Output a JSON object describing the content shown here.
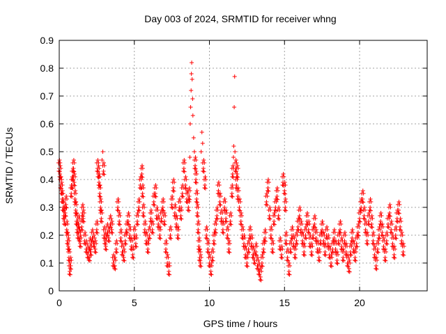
{
  "chart_data": {
    "type": "scatter",
    "title": "Day 003 of 2024, SRMTID for receiver whng",
    "xlabel": "GPS time / hours",
    "ylabel": "SRMTID / TECUs",
    "xlim": [
      0,
      24.5
    ],
    "ylim": [
      0,
      0.9
    ],
    "xticks": [
      0,
      5,
      10,
      15,
      20
    ],
    "xtick_labels": [
      "0",
      "5",
      "10",
      "15",
      "20"
    ],
    "yticks": [
      0,
      0.1,
      0.2,
      0.3,
      0.4,
      0.5,
      0.6,
      0.7,
      0.8,
      0.9
    ],
    "ytick_labels": [
      "0",
      "0.1",
      "0.2",
      "0.3",
      "0.4",
      "0.5",
      "0.6",
      "0.7",
      "0.8",
      "0.9"
    ],
    "grid": true,
    "marker": "+",
    "color": "#ff0000",
    "series": [
      {
        "name": "SRMTID",
        "points": [
          [
            0.0,
            0.44
          ],
          [
            0.05,
            0.42
          ],
          [
            0.1,
            0.38
          ],
          [
            0.15,
            0.36
          ],
          [
            0.2,
            0.33
          ],
          [
            0.25,
            0.3
          ],
          [
            0.3,
            0.27
          ],
          [
            0.35,
            0.25
          ],
          [
            0.4,
            0.28
          ],
          [
            0.45,
            0.31
          ],
          [
            0.5,
            0.22
          ],
          [
            0.55,
            0.18
          ],
          [
            0.6,
            0.16
          ],
          [
            0.65,
            0.12
          ],
          [
            0.7,
            0.07
          ],
          [
            0.75,
            0.09
          ],
          [
            0.8,
            0.35
          ],
          [
            0.85,
            0.38
          ],
          [
            0.9,
            0.41
          ],
          [
            0.95,
            0.44
          ],
          [
            1.0,
            0.39
          ],
          [
            1.05,
            0.33
          ],
          [
            1.1,
            0.29
          ],
          [
            1.15,
            0.25
          ],
          [
            1.2,
            0.22
          ],
          [
            1.25,
            0.2
          ],
          [
            1.3,
            0.24
          ],
          [
            1.35,
            0.19
          ],
          [
            1.4,
            0.17
          ],
          [
            1.5,
            0.23
          ],
          [
            1.55,
            0.28
          ],
          [
            1.6,
            0.26
          ],
          [
            1.7,
            0.18
          ],
          [
            1.8,
            0.15
          ],
          [
            1.9,
            0.13
          ],
          [
            2.0,
            0.12
          ],
          [
            2.05,
            0.16
          ],
          [
            2.1,
            0.14
          ],
          [
            2.2,
            0.19
          ],
          [
            2.3,
            0.17
          ],
          [
            2.4,
            0.15
          ],
          [
            2.5,
            0.22
          ],
          [
            2.55,
            0.44
          ],
          [
            2.6,
            0.42
          ],
          [
            2.65,
            0.39
          ],
          [
            2.7,
            0.35
          ],
          [
            2.75,
            0.3
          ],
          [
            2.8,
            0.26
          ],
          [
            2.85,
            0.47
          ],
          [
            2.9,
            0.5
          ],
          [
            2.95,
            0.43
          ],
          [
            3.0,
            0.2
          ],
          [
            3.05,
            0.18
          ],
          [
            3.1,
            0.16
          ],
          [
            3.2,
            0.21
          ],
          [
            3.3,
            0.19
          ],
          [
            3.4,
            0.24
          ],
          [
            3.5,
            0.22
          ],
          [
            3.6,
            0.1
          ],
          [
            3.7,
            0.09
          ],
          [
            3.8,
            0.15
          ],
          [
            3.9,
            0.3
          ],
          [
            4.0,
            0.25
          ],
          [
            4.1,
            0.19
          ],
          [
            4.2,
            0.14
          ],
          [
            4.3,
            0.12
          ],
          [
            4.4,
            0.18
          ],
          [
            4.5,
            0.22
          ],
          [
            4.6,
            0.25
          ],
          [
            4.7,
            0.2
          ],
          [
            4.8,
            0.16
          ],
          [
            4.9,
            0.13
          ],
          [
            5.0,
            0.2
          ],
          [
            5.1,
            0.17
          ],
          [
            5.2,
            0.25
          ],
          [
            5.3,
            0.3
          ],
          [
            5.4,
            0.38
          ],
          [
            5.5,
            0.42
          ],
          [
            5.55,
            0.35
          ],
          [
            5.6,
            0.28
          ],
          [
            5.7,
            0.22
          ],
          [
            5.8,
            0.18
          ],
          [
            5.9,
            0.15
          ],
          [
            6.0,
            0.2
          ],
          [
            6.1,
            0.26
          ],
          [
            6.2,
            0.22
          ],
          [
            6.3,
            0.32
          ],
          [
            6.4,
            0.35
          ],
          [
            6.5,
            0.27
          ],
          [
            6.6,
            0.24
          ],
          [
            6.7,
            0.2
          ],
          [
            6.8,
            0.26
          ],
          [
            6.9,
            0.3
          ],
          [
            7.0,
            0.25
          ],
          [
            7.1,
            0.15
          ],
          [
            7.2,
            0.1
          ],
          [
            7.3,
            0.07
          ],
          [
            7.4,
            0.2
          ],
          [
            7.5,
            0.31
          ],
          [
            7.6,
            0.37
          ],
          [
            7.7,
            0.28
          ],
          [
            7.8,
            0.24
          ],
          [
            7.9,
            0.2
          ],
          [
            8.0,
            0.3
          ],
          [
            8.1,
            0.27
          ],
          [
            8.2,
            0.35
          ],
          [
            8.3,
            0.44
          ],
          [
            8.4,
            0.38
          ],
          [
            8.5,
            0.33
          ],
          [
            8.6,
            0.3
          ],
          [
            8.65,
            0.34
          ],
          [
            8.7,
            0.48
          ],
          [
            8.72,
            0.6
          ],
          [
            8.75,
            0.66
          ],
          [
            8.78,
            0.72
          ],
          [
            8.8,
            0.78
          ],
          [
            8.82,
            0.82
          ],
          [
            8.85,
            0.76
          ],
          [
            8.88,
            0.69
          ],
          [
            8.9,
            0.63
          ],
          [
            8.95,
            0.55
          ],
          [
            9.0,
            0.5
          ],
          [
            9.05,
            0.45
          ],
          [
            9.1,
            0.4
          ],
          [
            9.15,
            0.33
          ],
          [
            9.2,
            0.28
          ],
          [
            9.25,
            0.22
          ],
          [
            9.3,
            0.16
          ],
          [
            9.35,
            0.12
          ],
          [
            9.4,
            0.1
          ],
          [
            9.45,
            0.5
          ],
          [
            9.5,
            0.57
          ],
          [
            9.55,
            0.53
          ],
          [
            9.6,
            0.44
          ],
          [
            9.7,
            0.38
          ],
          [
            9.8,
            0.2
          ],
          [
            9.9,
            0.15
          ],
          [
            10.0,
            0.1
          ],
          [
            10.1,
            0.07
          ],
          [
            10.2,
            0.12
          ],
          [
            10.3,
            0.18
          ],
          [
            10.4,
            0.22
          ],
          [
            10.5,
            0.27
          ],
          [
            10.6,
            0.36
          ],
          [
            10.7,
            0.32
          ],
          [
            10.8,
            0.26
          ],
          [
            10.9,
            0.22
          ],
          [
            11.0,
            0.3
          ],
          [
            11.1,
            0.26
          ],
          [
            11.2,
            0.2
          ],
          [
            11.3,
            0.15
          ],
          [
            11.4,
            0.25
          ],
          [
            11.5,
            0.35
          ],
          [
            11.55,
            0.42
          ],
          [
            11.6,
            0.48
          ],
          [
            11.62,
            0.52
          ],
          [
            11.65,
            0.66
          ],
          [
            11.68,
            0.77
          ],
          [
            11.7,
            0.5
          ],
          [
            11.75,
            0.44
          ],
          [
            11.8,
            0.38
          ],
          [
            11.85,
            0.42
          ],
          [
            11.9,
            0.34
          ],
          [
            12.0,
            0.3
          ],
          [
            12.1,
            0.25
          ],
          [
            12.2,
            0.2
          ],
          [
            12.3,
            0.17
          ],
          [
            12.4,
            0.13
          ],
          [
            12.5,
            0.1
          ],
          [
            12.6,
            0.15
          ],
          [
            12.7,
            0.2
          ],
          [
            12.8,
            0.17
          ],
          [
            12.9,
            0.13
          ],
          [
            13.0,
            0.11
          ],
          [
            13.1,
            0.14
          ],
          [
            13.2,
            0.09
          ],
          [
            13.3,
            0.07
          ],
          [
            13.4,
            0.05
          ],
          [
            13.5,
            0.1
          ],
          [
            13.6,
            0.15
          ],
          [
            13.7,
            0.19
          ],
          [
            13.8,
            0.32
          ],
          [
            13.9,
            0.37
          ],
          [
            14.0,
            0.27
          ],
          [
            14.1,
            0.2
          ],
          [
            14.2,
            0.15
          ],
          [
            14.3,
            0.25
          ],
          [
            14.4,
            0.3
          ],
          [
            14.5,
            0.34
          ],
          [
            14.6,
            0.27
          ],
          [
            14.7,
            0.16
          ],
          [
            14.8,
            0.13
          ],
          [
            14.9,
            0.39
          ],
          [
            15.0,
            0.36
          ],
          [
            15.05,
            0.3
          ],
          [
            15.1,
            0.18
          ],
          [
            15.2,
            0.12
          ],
          [
            15.3,
            0.07
          ],
          [
            15.4,
            0.15
          ],
          [
            15.5,
            0.2
          ],
          [
            15.6,
            0.17
          ],
          [
            15.7,
            0.13
          ],
          [
            15.8,
            0.18
          ],
          [
            15.9,
            0.23
          ],
          [
            16.0,
            0.27
          ],
          [
            16.1,
            0.22
          ],
          [
            16.2,
            0.18
          ],
          [
            16.3,
            0.14
          ],
          [
            16.4,
            0.2
          ],
          [
            16.5,
            0.25
          ],
          [
            16.6,
            0.22
          ],
          [
            16.7,
            0.17
          ],
          [
            16.8,
            0.14
          ],
          [
            16.9,
            0.2
          ],
          [
            17.0,
            0.24
          ],
          [
            17.1,
            0.19
          ],
          [
            17.2,
            0.15
          ],
          [
            17.3,
            0.12
          ],
          [
            17.4,
            0.18
          ],
          [
            17.5,
            0.22
          ],
          [
            17.6,
            0.18
          ],
          [
            17.7,
            0.14
          ],
          [
            17.8,
            0.2
          ],
          [
            17.9,
            0.17
          ],
          [
            18.0,
            0.13
          ],
          [
            18.1,
            0.1
          ],
          [
            18.2,
            0.15
          ],
          [
            18.3,
            0.19
          ],
          [
            18.4,
            0.15
          ],
          [
            18.5,
            0.11
          ],
          [
            18.6,
            0.18
          ],
          [
            18.7,
            0.22
          ],
          [
            18.8,
            0.16
          ],
          [
            18.9,
            0.12
          ],
          [
            19.0,
            0.18
          ],
          [
            19.1,
            0.14
          ],
          [
            19.2,
            0.1
          ],
          [
            19.3,
            0.08
          ],
          [
            19.4,
            0.14
          ],
          [
            19.5,
            0.19
          ],
          [
            19.6,
            0.15
          ],
          [
            19.7,
            0.12
          ],
          [
            19.8,
            0.17
          ],
          [
            19.9,
            0.21
          ],
          [
            20.0,
            0.26
          ],
          [
            20.1,
            0.3
          ],
          [
            20.2,
            0.33
          ],
          [
            20.3,
            0.27
          ],
          [
            20.4,
            0.22
          ],
          [
            20.5,
            0.18
          ],
          [
            20.6,
            0.25
          ],
          [
            20.7,
            0.3
          ],
          [
            20.8,
            0.24
          ],
          [
            20.9,
            0.18
          ],
          [
            21.0,
            0.13
          ],
          [
            21.1,
            0.09
          ],
          [
            21.2,
            0.15
          ],
          [
            21.3,
            0.2
          ],
          [
            21.4,
            0.25
          ],
          [
            21.5,
            0.21
          ],
          [
            21.6,
            0.16
          ],
          [
            21.7,
            0.12
          ],
          [
            21.8,
            0.18
          ],
          [
            21.9,
            0.24
          ],
          [
            22.0,
            0.28
          ],
          [
            22.1,
            0.22
          ],
          [
            22.2,
            0.17
          ],
          [
            22.3,
            0.13
          ],
          [
            22.4,
            0.2
          ],
          [
            22.5,
            0.26
          ],
          [
            22.6,
            0.29
          ],
          [
            22.7,
            0.23
          ],
          [
            22.8,
            0.18
          ],
          [
            22.9,
            0.14
          ]
        ]
      }
    ]
  }
}
